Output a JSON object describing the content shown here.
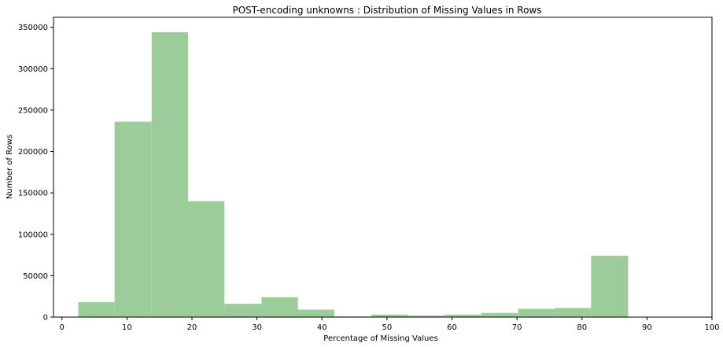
{
  "chart_data": {
    "type": "bar",
    "title": "POST-encoding unknowns : Distribution of Missing Values in Rows",
    "xlabel": "Percentage of Missing Values",
    "ylabel": "Number of Rows",
    "xlim": [
      -1.3,
      100
    ],
    "ylim": [
      0,
      362000
    ],
    "xticks": [
      0,
      10,
      20,
      30,
      40,
      50,
      60,
      70,
      80,
      90,
      100
    ],
    "yticks": [
      0,
      50000,
      100000,
      150000,
      200000,
      250000,
      300000,
      350000
    ],
    "bar_color": "#9ccc9a",
    "bins": [
      {
        "x0": 2.5,
        "x1": 8.1,
        "value": 18000
      },
      {
        "x0": 8.1,
        "x1": 13.8,
        "value": 236000
      },
      {
        "x0": 13.8,
        "x1": 19.4,
        "value": 344000
      },
      {
        "x0": 19.4,
        "x1": 25.0,
        "value": 140000
      },
      {
        "x0": 25.0,
        "x1": 30.7,
        "value": 16000
      },
      {
        "x0": 30.7,
        "x1": 36.3,
        "value": 24000
      },
      {
        "x0": 36.3,
        "x1": 41.9,
        "value": 9000
      },
      {
        "x0": 41.9,
        "x1": 47.6,
        "value": 800
      },
      {
        "x0": 47.6,
        "x1": 53.2,
        "value": 3000
      },
      {
        "x0": 53.2,
        "x1": 58.9,
        "value": 2000
      },
      {
        "x0": 58.9,
        "x1": 64.5,
        "value": 3000
      },
      {
        "x0": 64.5,
        "x1": 70.2,
        "value": 5000
      },
      {
        "x0": 70.2,
        "x1": 75.8,
        "value": 10000
      },
      {
        "x0": 75.8,
        "x1": 81.4,
        "value": 11000
      },
      {
        "x0": 81.4,
        "x1": 87.1,
        "value": 74000
      }
    ],
    "grid": false,
    "legend": "none"
  }
}
